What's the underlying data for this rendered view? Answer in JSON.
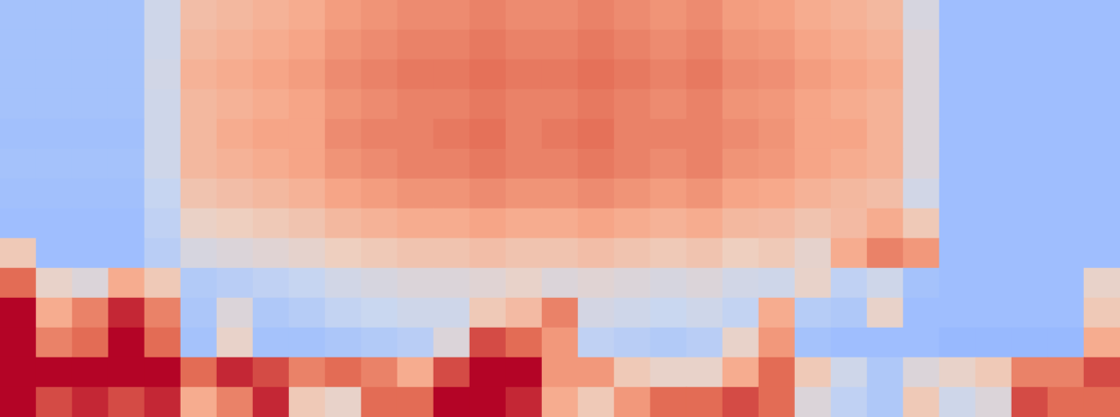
{
  "chart_data": {
    "type": "heatmap",
    "tick_labels": false,
    "color_range": [
      0,
      1
    ],
    "values": [
      [
        0.32,
        0.32,
        0.32,
        0.32,
        0.45,
        0.64,
        0.66,
        0.68,
        0.7,
        0.74,
        0.76,
        0.78,
        0.78,
        0.8,
        0.78,
        0.78,
        0.8,
        0.78,
        0.76,
        0.78,
        0.74,
        0.73,
        0.7,
        0.68,
        0.66,
        0.48,
        0.3,
        0.3,
        0.3,
        0.3,
        0.3
      ],
      [
        0.32,
        0.32,
        0.32,
        0.32,
        0.45,
        0.66,
        0.68,
        0.7,
        0.72,
        0.76,
        0.78,
        0.8,
        0.8,
        0.82,
        0.8,
        0.8,
        0.82,
        0.8,
        0.78,
        0.8,
        0.76,
        0.75,
        0.72,
        0.7,
        0.68,
        0.5,
        0.3,
        0.3,
        0.3,
        0.3,
        0.3
      ],
      [
        0.32,
        0.32,
        0.32,
        0.32,
        0.46,
        0.68,
        0.7,
        0.72,
        0.74,
        0.78,
        0.8,
        0.82,
        0.82,
        0.84,
        0.82,
        0.82,
        0.84,
        0.82,
        0.8,
        0.82,
        0.78,
        0.77,
        0.74,
        0.72,
        0.7,
        0.5,
        0.3,
        0.3,
        0.3,
        0.3,
        0.3
      ],
      [
        0.32,
        0.32,
        0.32,
        0.32,
        0.45,
        0.66,
        0.68,
        0.7,
        0.72,
        0.76,
        0.78,
        0.8,
        0.8,
        0.82,
        0.8,
        0.8,
        0.82,
        0.8,
        0.78,
        0.8,
        0.76,
        0.75,
        0.72,
        0.7,
        0.68,
        0.5,
        0.3,
        0.3,
        0.3,
        0.3,
        0.3
      ],
      [
        0.31,
        0.31,
        0.31,
        0.31,
        0.45,
        0.66,
        0.7,
        0.72,
        0.72,
        0.78,
        0.8,
        0.8,
        0.82,
        0.84,
        0.8,
        0.82,
        0.84,
        0.8,
        0.8,
        0.8,
        0.78,
        0.76,
        0.72,
        0.72,
        0.68,
        0.5,
        0.3,
        0.3,
        0.3,
        0.3,
        0.3
      ],
      [
        0.32,
        0.32,
        0.32,
        0.32,
        0.45,
        0.66,
        0.68,
        0.7,
        0.72,
        0.76,
        0.78,
        0.8,
        0.8,
        0.82,
        0.8,
        0.8,
        0.82,
        0.8,
        0.78,
        0.8,
        0.76,
        0.75,
        0.72,
        0.7,
        0.68,
        0.5,
        0.3,
        0.3,
        0.3,
        0.3,
        0.3
      ],
      [
        0.31,
        0.31,
        0.31,
        0.31,
        0.42,
        0.62,
        0.64,
        0.66,
        0.68,
        0.72,
        0.74,
        0.76,
        0.76,
        0.78,
        0.76,
        0.76,
        0.78,
        0.76,
        0.74,
        0.76,
        0.72,
        0.71,
        0.68,
        0.66,
        0.64,
        0.46,
        0.3,
        0.3,
        0.3,
        0.3,
        0.3
      ],
      [
        0.3,
        0.3,
        0.3,
        0.3,
        0.4,
        0.56,
        0.58,
        0.6,
        0.62,
        0.66,
        0.68,
        0.7,
        0.7,
        0.72,
        0.7,
        0.7,
        0.72,
        0.7,
        0.68,
        0.7,
        0.66,
        0.65,
        0.62,
        0.65,
        0.7,
        0.6,
        0.3,
        0.3,
        0.3,
        0.3,
        0.3
      ],
      [
        0.6,
        0.3,
        0.3,
        0.3,
        0.38,
        0.48,
        0.5,
        0.52,
        0.54,
        0.58,
        0.6,
        0.62,
        0.62,
        0.64,
        0.62,
        0.62,
        0.64,
        0.62,
        0.6,
        0.62,
        0.58,
        0.6,
        0.54,
        0.7,
        0.8,
        0.75,
        0.3,
        0.3,
        0.3,
        0.3,
        0.3
      ],
      [
        0.85,
        0.55,
        0.5,
        0.7,
        0.6,
        0.36,
        0.38,
        0.4,
        0.42,
        0.46,
        0.48,
        0.5,
        0.5,
        0.52,
        0.55,
        0.5,
        0.52,
        0.5,
        0.48,
        0.5,
        0.46,
        0.45,
        0.55,
        0.4,
        0.45,
        0.32,
        0.3,
        0.3,
        0.3,
        0.3,
        0.55
      ],
      [
        1,
        0.7,
        0.8,
        0.95,
        0.8,
        0.34,
        0.5,
        0.35,
        0.37,
        0.41,
        0.43,
        0.45,
        0.45,
        0.6,
        0.65,
        0.8,
        0.47,
        0.45,
        0.43,
        0.45,
        0.41,
        0.7,
        0.37,
        0.35,
        0.55,
        0.3,
        0.3,
        0.3,
        0.3,
        0.3,
        0.6
      ],
      [
        1,
        0.8,
        0.85,
        1,
        0.85,
        0.32,
        0.55,
        0.32,
        0.32,
        0.34,
        0.36,
        0.38,
        0.5,
        0.9,
        0.85,
        0.75,
        0.4,
        0.38,
        0.36,
        0.38,
        0.55,
        0.75,
        0.32,
        0.3,
        0.3,
        0.3,
        0.28,
        0.28,
        0.28,
        0.28,
        0.7
      ],
      [
        1,
        1,
        1,
        1,
        1,
        0.85,
        0.95,
        0.9,
        0.8,
        0.85,
        0.8,
        0.7,
        0.9,
        1,
        1,
        0.75,
        0.75,
        0.6,
        0.55,
        0.55,
        0.7,
        0.85,
        0.6,
        0.45,
        0.35,
        0.5,
        0.55,
        0.6,
        0.8,
        0.8,
        0.9
      ],
      [
        1,
        0.9,
        0.95,
        0.9,
        0.95,
        0.7,
        0.8,
        0.95,
        0.6,
        0.55,
        0.85,
        0.85,
        1,
        1,
        0.95,
        0.7,
        0.6,
        0.75,
        0.85,
        0.85,
        0.9,
        0.85,
        0.5,
        0.4,
        0.35,
        0.6,
        0.45,
        0.5,
        0.9,
        0.85,
        0.85
      ]
    ]
  }
}
